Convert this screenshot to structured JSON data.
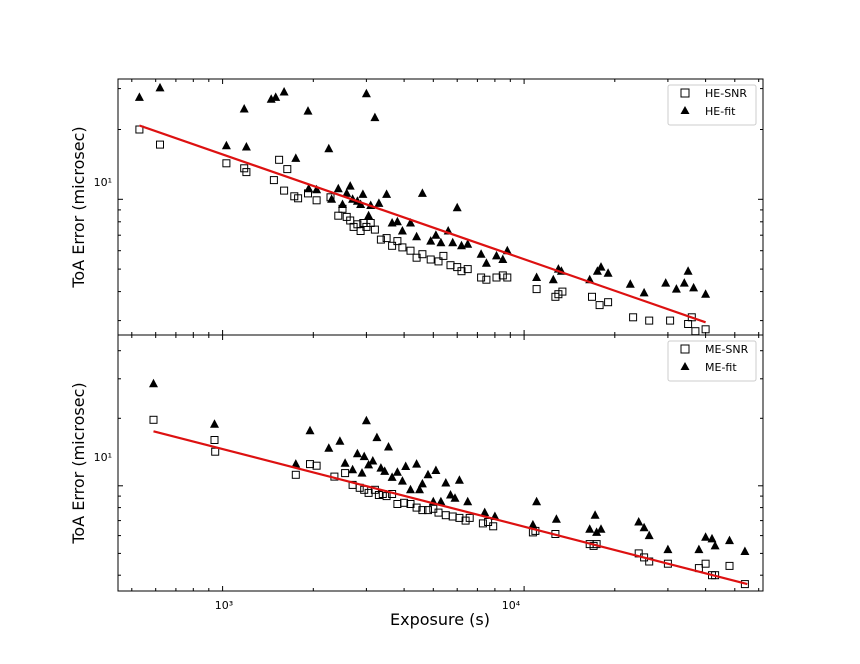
{
  "figure": {
    "xlabel": "Exposure (s)",
    "shared_x": true
  },
  "chart_data": [
    {
      "type": "scatter",
      "panel": "top",
      "xscale": "log",
      "yscale": "log",
      "xlim": [
        450,
        62000
      ],
      "ylim": [
        2.6,
        33
      ],
      "ylabel": "ToA Error (microsec)",
      "yticks": [
        {
          "value": 10,
          "label": "10¹"
        }
      ],
      "legend": {
        "placement": "top-right",
        "entries": [
          {
            "label": "HE-SNR",
            "marker": "open-square"
          },
          {
            "label": "HE-fit",
            "marker": "filled-triangle"
          }
        ]
      },
      "fit_line": {
        "color": "#dd1111",
        "x": [
          530,
          40000
        ],
        "y": [
          20.8,
          2.95
        ]
      },
      "series": [
        {
          "name": "HE-SNR",
          "marker": "open-square",
          "x": [
            530,
            620,
            1030,
            1180,
            1200,
            1480,
            1540,
            1600,
            1640,
            1730,
            1780,
            1920,
            2050,
            2280,
            2420,
            2500,
            2580,
            2650,
            2720,
            2800,
            2870,
            2930,
            3000,
            3100,
            3200,
            3350,
            3500,
            3650,
            3800,
            3950,
            4200,
            4400,
            4600,
            4900,
            5200,
            5400,
            5700,
            6000,
            6200,
            6500,
            7200,
            7500,
            8100,
            8500,
            8800,
            11000,
            12700,
            13000,
            13400,
            16800,
            17800,
            19000,
            23000,
            26000,
            30500,
            35000,
            36000,
            37000,
            40000
          ],
          "y": [
            20,
            17.2,
            14.3,
            13.6,
            13.1,
            12.1,
            14.8,
            10.9,
            13.5,
            10.3,
            10.1,
            10.6,
            9.9,
            10.2,
            8.5,
            9.1,
            8.4,
            8.1,
            7.6,
            7.8,
            7.3,
            7.9,
            7.6,
            7.9,
            7.4,
            6.7,
            6.8,
            6.3,
            6.6,
            6.2,
            6.0,
            5.6,
            5.8,
            5.5,
            5.4,
            5.7,
            5.2,
            5.1,
            4.9,
            5.0,
            4.6,
            4.5,
            4.6,
            4.7,
            4.6,
            4.1,
            3.8,
            3.9,
            4.0,
            3.8,
            3.5,
            3.6,
            3.1,
            3.0,
            3.0,
            2.9,
            3.1,
            2.7,
            2.75
          ]
        },
        {
          "name": "HE-fit",
          "marker": "filled-triangle",
          "x": [
            530,
            620,
            1030,
            1180,
            1200,
            1450,
            1500,
            1600,
            1750,
            1920,
            1930,
            2050,
            2250,
            2300,
            2420,
            2500,
            2580,
            2650,
            2700,
            2800,
            2870,
            2920,
            3000,
            3050,
            3100,
            3200,
            3300,
            3500,
            3650,
            3800,
            3950,
            4200,
            4400,
            4600,
            4900,
            5100,
            5300,
            5600,
            5800,
            6000,
            6200,
            6500,
            7200,
            7500,
            8100,
            8500,
            8800,
            11000,
            12500,
            13000,
            13300,
            16500,
            17500,
            18000,
            19000,
            22500,
            25000,
            29500,
            32000,
            34000,
            35000,
            36500,
            40000
          ],
          "y": [
            27.5,
            30.2,
            17,
            24.5,
            16.8,
            27,
            27.5,
            29,
            15,
            24,
            11.1,
            11,
            16.5,
            10,
            11.1,
            9.5,
            10.6,
            11.4,
            10,
            9.8,
            9.5,
            10.5,
            28.5,
            8.5,
            9.4,
            22.5,
            9.6,
            10.5,
            7.9,
            8,
            7.3,
            7.9,
            6.9,
            10.6,
            6.6,
            7,
            6.5,
            7.3,
            6.5,
            9.2,
            6.3,
            6.4,
            5.8,
            5.3,
            5.7,
            5.5,
            6,
            4.6,
            4.5,
            5,
            4.9,
            4.5,
            4.9,
            5.1,
            4.8,
            4.3,
            3.95,
            4.35,
            4.1,
            4.35,
            4.9,
            4.15,
            3.9
          ]
        }
      ]
    },
    {
      "type": "scatter",
      "panel": "bottom",
      "xscale": "log",
      "yscale": "log",
      "xlim": [
        450,
        62000
      ],
      "ylim": [
        3.4,
        47
      ],
      "ylabel": "ToA Error (microsec)",
      "yticks": [
        {
          "value": 10,
          "label": "10¹"
        }
      ],
      "xticks": [
        {
          "value": 1000,
          "label": "10³"
        },
        {
          "value": 10000,
          "label": "10⁴"
        }
      ],
      "legend": {
        "placement": "top-right",
        "entries": [
          {
            "label": "ME-SNR",
            "marker": "open-square"
          },
          {
            "label": "ME-fit",
            "marker": "filled-triangle"
          }
        ]
      },
      "fit_line": {
        "color": "#dd1111",
        "x": [
          590,
          55000
        ],
        "y": [
          17.5,
          3.65
        ]
      },
      "series": [
        {
          "name": "ME-SNR",
          "marker": "open-square",
          "x": [
            590,
            940,
            945,
            1750,
            1950,
            2050,
            2350,
            2550,
            2700,
            2850,
            2950,
            3050,
            3200,
            3300,
            3400,
            3500,
            3650,
            3800,
            4000,
            4200,
            4400,
            4600,
            4800,
            5000,
            5200,
            5500,
            5800,
            6100,
            6400,
            6600,
            7300,
            7600,
            7900,
            10700,
            10900,
            12700,
            16500,
            17000,
            17400,
            24000,
            25000,
            26000,
            30000,
            38000,
            40000,
            42000,
            43000,
            48000,
            54000
          ],
          "y": [
            19.7,
            16,
            14.2,
            11.2,
            12.5,
            12.3,
            11,
            11.4,
            10.1,
            9.8,
            9.6,
            9.3,
            9.6,
            9.1,
            9.2,
            9,
            9.2,
            8.3,
            8.4,
            8.3,
            8.0,
            7.8,
            7.8,
            7.9,
            7.6,
            7.4,
            7.3,
            7.2,
            7.0,
            7.2,
            6.8,
            6.9,
            6.6,
            6.2,
            6.3,
            6.1,
            5.5,
            5.4,
            5.5,
            5.0,
            4.8,
            4.6,
            4.5,
            4.3,
            4.5,
            4.0,
            4.0,
            4.4,
            3.65
          ]
        },
        {
          "name": "ME-fit",
          "marker": "filled-triangle",
          "x": [
            590,
            940,
            1750,
            1950,
            2250,
            2450,
            2550,
            2700,
            2800,
            2900,
            2950,
            3000,
            3050,
            3150,
            3250,
            3350,
            3450,
            3550,
            3650,
            3800,
            3950,
            4050,
            4200,
            4400,
            4500,
            4600,
            4800,
            5000,
            5100,
            5300,
            5500,
            5700,
            5900,
            6100,
            6500,
            7400,
            8000,
            10700,
            11000,
            12800,
            16500,
            17200,
            17400,
            18000,
            24000,
            25000,
            26000,
            30000,
            38000,
            40000,
            42000,
            43000,
            48000,
            54000
          ],
          "y": [
            28.5,
            18.8,
            12.5,
            17.6,
            14.7,
            15.8,
            12.6,
            11.8,
            13.9,
            11.4,
            13.5,
            19.5,
            12.4,
            12.9,
            16.4,
            12,
            11.6,
            14.9,
            10.9,
            11.5,
            10.5,
            12.2,
            9.6,
            12.5,
            9.6,
            10.2,
            11.2,
            8.5,
            11.7,
            8.5,
            10.3,
            9.1,
            8.8,
            10.6,
            8.5,
            7.6,
            7.3,
            6.7,
            8.5,
            7.1,
            6.4,
            7.4,
            6.2,
            6.4,
            6.9,
            6.5,
            6.0,
            5.2,
            5.2,
            5.9,
            5.8,
            5.4,
            5.7,
            5.1
          ]
        }
      ]
    }
  ]
}
